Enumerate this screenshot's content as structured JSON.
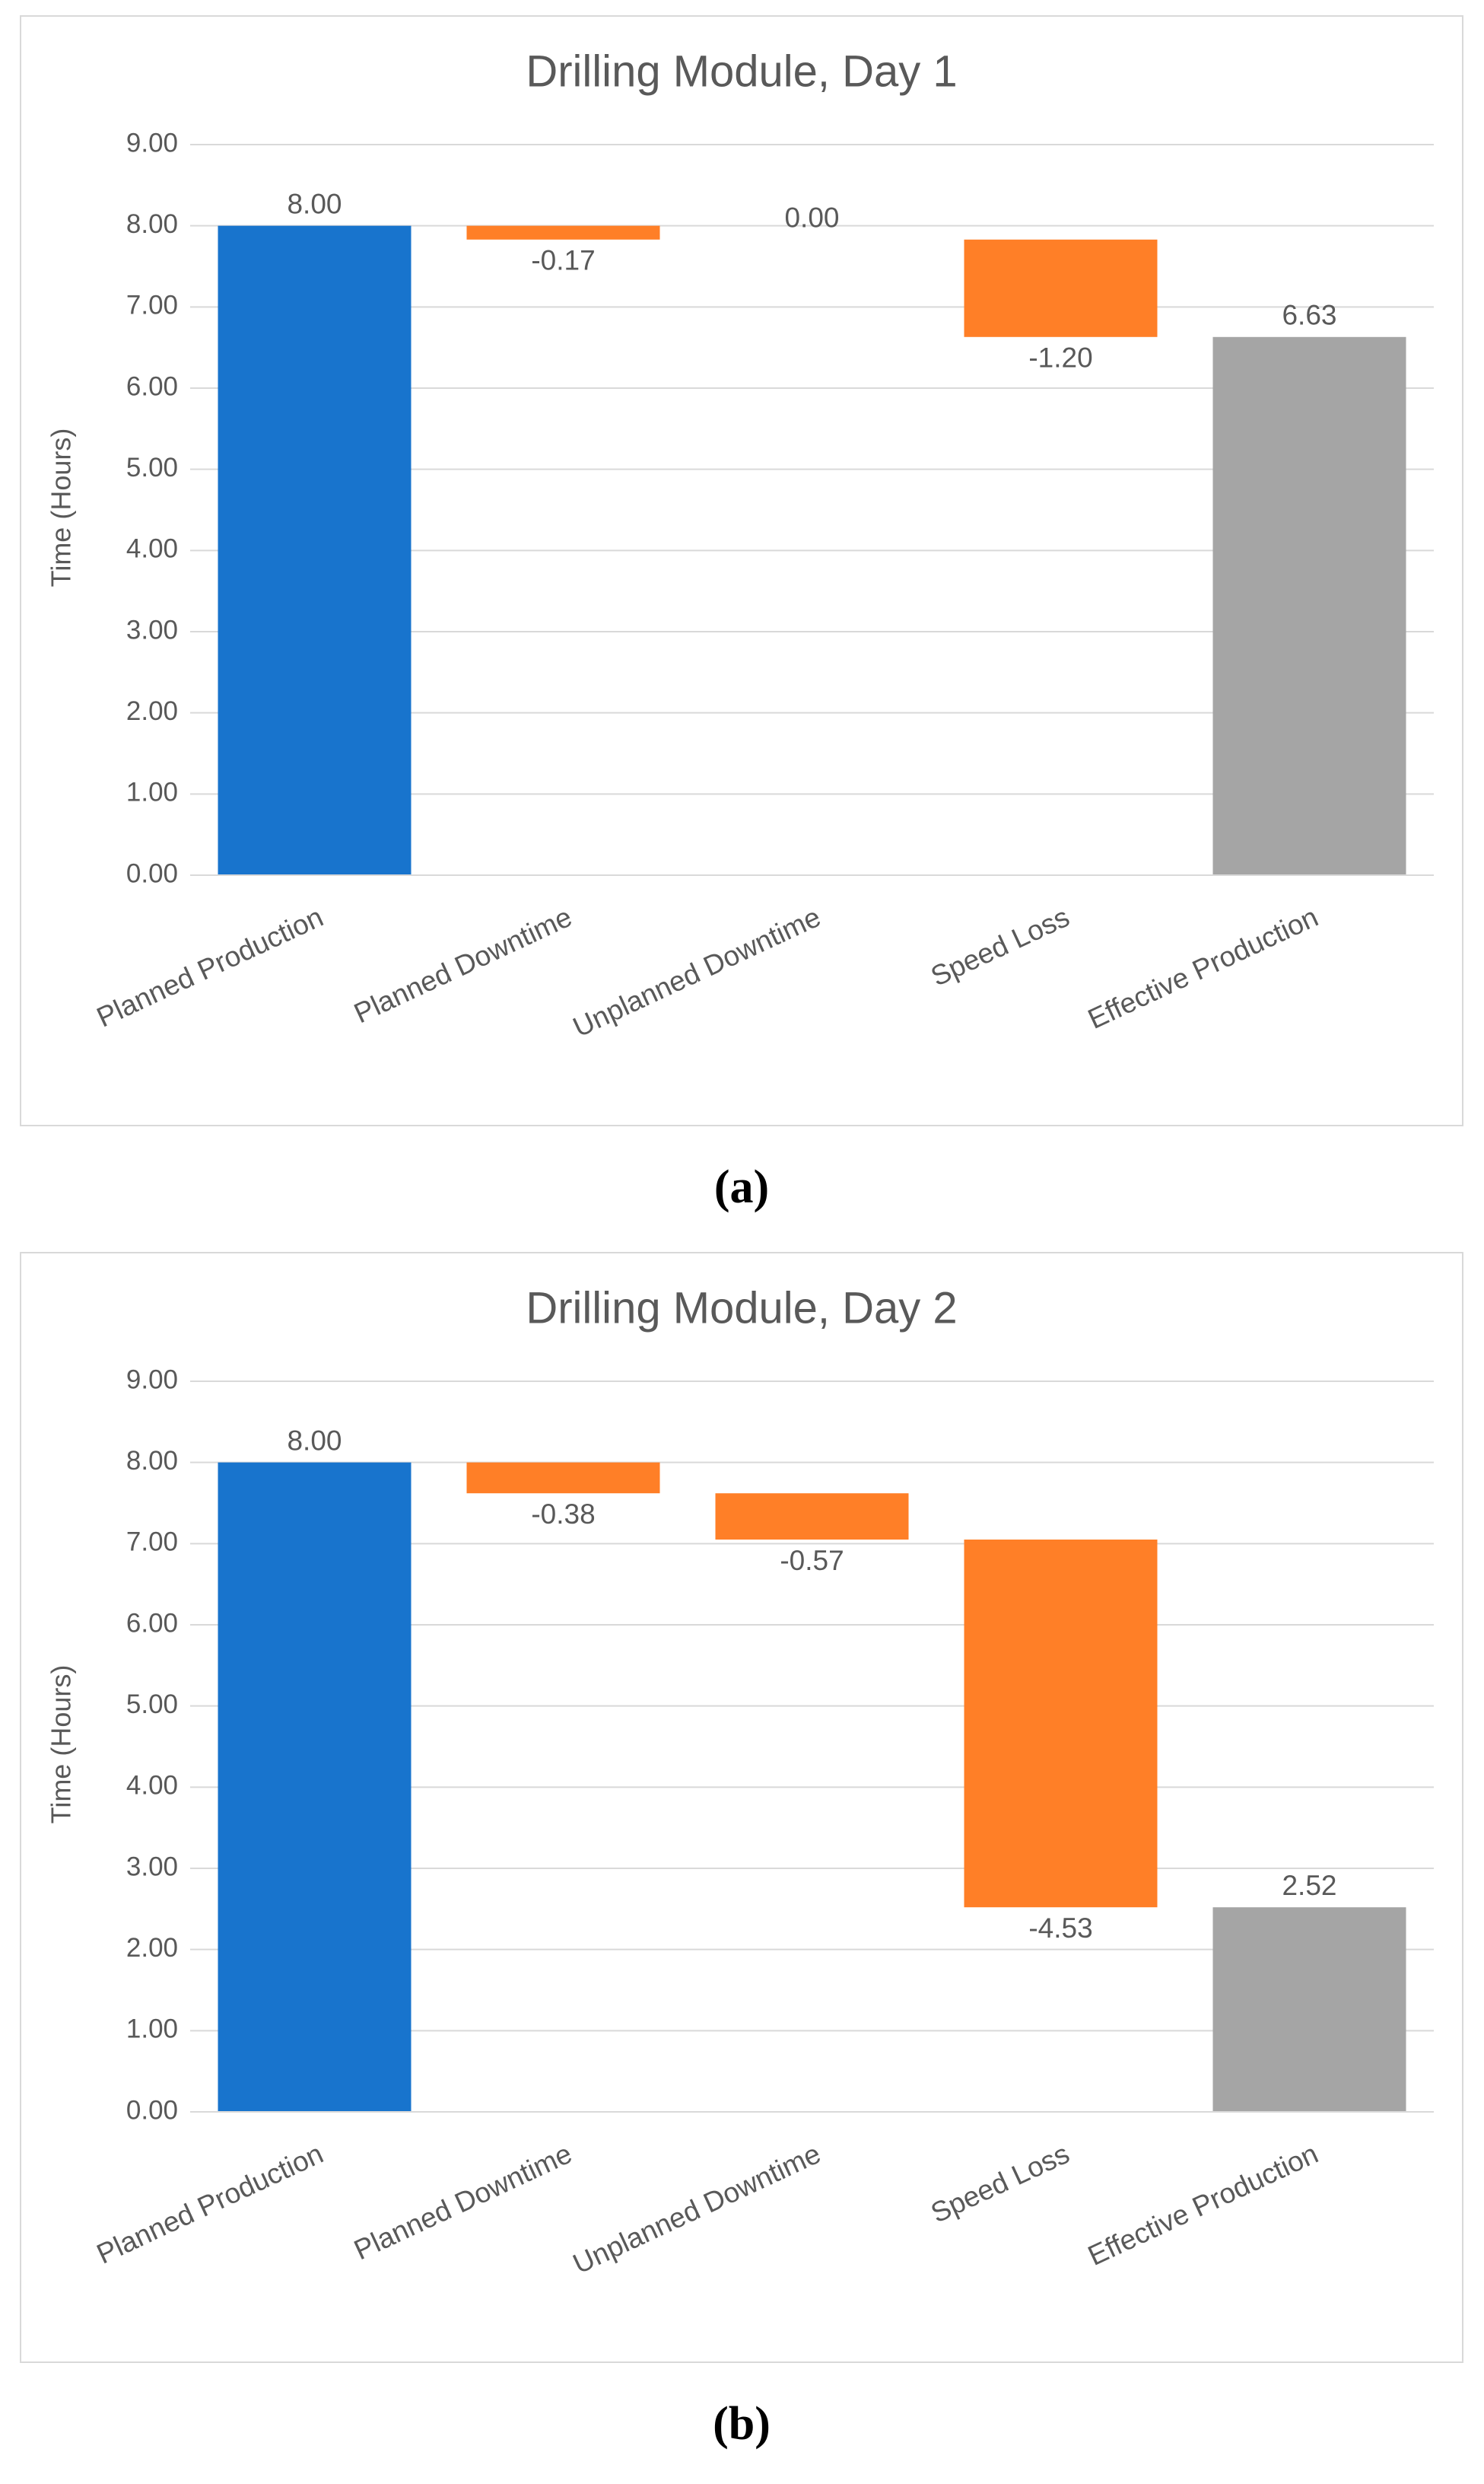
{
  "chart_data": [
    {
      "type": "waterfall",
      "title": "Drilling Module, Day 1",
      "caption": "(a)",
      "y_label": "Time (Hours)",
      "categories": [
        "Planned Production",
        "Planned Downtime",
        "Unplanned Downtime",
        "Speed Loss",
        "Effective Production"
      ],
      "values": [
        8,
        -0.17,
        0,
        -1.2,
        6.63
      ],
      "value_labels": [
        "8.00",
        "-0.17",
        "0.00",
        "-1.20",
        "6.63"
      ],
      "colors": [
        "#1874cd",
        "#ff7f27",
        "#5b9bd5",
        "#ff7f27",
        "#a5a5a5"
      ],
      "ylim": [
        0,
        9
      ],
      "yticks": [
        {
          "value": 0,
          "label": "0.00"
        },
        {
          "value": 1,
          "label": "1.00"
        },
        {
          "value": 2,
          "label": "2.00"
        },
        {
          "value": 3,
          "label": "3.00"
        },
        {
          "value": 4,
          "label": "4.00"
        },
        {
          "value": 5,
          "label": "5.00"
        },
        {
          "value": 6,
          "label": "6.00"
        },
        {
          "value": 7,
          "label": "7.00"
        },
        {
          "value": 8,
          "label": "8.00"
        },
        {
          "value": 9,
          "label": "9.00"
        }
      ],
      "grid": true
    },
    {
      "type": "waterfall",
      "title": "Drilling Module, Day 2",
      "caption": "(b)",
      "y_label": "Time (Hours)",
      "categories": [
        "Planned Production",
        "Planned Downtime",
        "Unplanned Downtime",
        "Speed Loss",
        "Effective Production"
      ],
      "values": [
        8,
        -0.38,
        -0.57,
        -4.53,
        2.52
      ],
      "value_labels": [
        "8.00",
        "-0.38",
        "-0.57",
        "-4.53",
        "2.52"
      ],
      "colors": [
        "#1874cd",
        "#ff7f27",
        "#ff7f27",
        "#ff7f27",
        "#a5a5a5"
      ],
      "ylim": [
        0,
        9
      ],
      "yticks": [
        {
          "value": 0,
          "label": "0.00"
        },
        {
          "value": 1,
          "label": "1.00"
        },
        {
          "value": 2,
          "label": "2.00"
        },
        {
          "value": 3,
          "label": "3.00"
        },
        {
          "value": 4,
          "label": "4.00"
        },
        {
          "value": 5,
          "label": "5.00"
        },
        {
          "value": 6,
          "label": "6.00"
        },
        {
          "value": 7,
          "label": "7.00"
        },
        {
          "value": 8,
          "label": "8.00"
        },
        {
          "value": 9,
          "label": "9.00"
        }
      ],
      "grid": true
    }
  ]
}
